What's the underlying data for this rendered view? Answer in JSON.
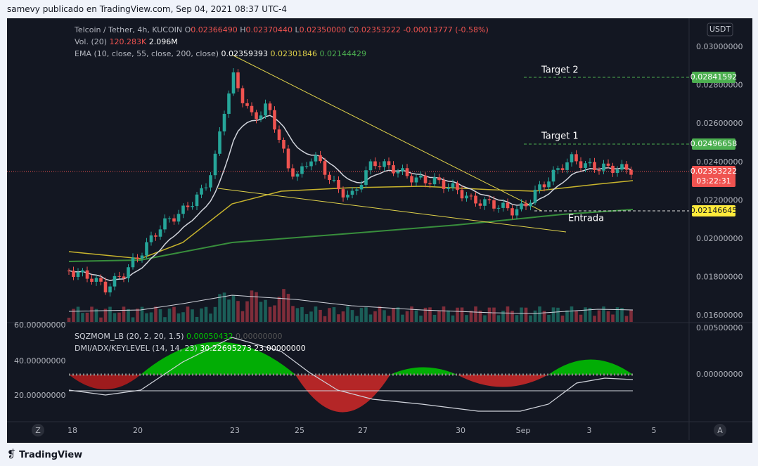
{
  "header": {
    "text": "samevy publicado en TradingView.com, Sep 04, 2021 08:37 UTC-4"
  },
  "legend": {
    "symbol": "Telcoin / Tether, 4h, KUCOIN",
    "open_label": "O",
    "open": "0.02366490",
    "high_label": "H",
    "high": "0.02370440",
    "low_label": "L",
    "low": "0.02350000",
    "close_label": "C",
    "close": "0.02353222",
    "change": "-0.00013777 (-0.58%)",
    "volume_name": "Vol. (20)",
    "volume_ma": "120.283K",
    "volume": "2.096M",
    "ema_name": "EMA (10, close, 55, close, 200, close)",
    "ema_values": [
      "0.02359393",
      "0.02301846",
      "0.02144429"
    ]
  },
  "price_axis": {
    "currency": "USDT",
    "labels": [
      "0.03000000",
      "0.02800000",
      "0.02600000",
      "0.02400000",
      "0.02200000",
      "0.02000000",
      "0.01800000",
      "0.01600000"
    ]
  },
  "price_badges": {
    "target2": "0.02841592",
    "target1": "0.02496658",
    "last": "0.02353222",
    "countdown": "03:22:31",
    "entry": "0.02146645"
  },
  "annotations": {
    "target2": "Target 2",
    "target1": "Target 1",
    "entry": "Entrada"
  },
  "indicator_pane": {
    "sqzmom_name": "SQZMOM_LB (20, 2, 20, 1.5)",
    "sqzmom_value": "0.00050432",
    "sqzmom_value2": "0.00000000",
    "dmi_name": "DMI/ADX/KEYLEVEL (14, 14, 23)",
    "dmi_values": [
      "30.22695273",
      "23.00000000"
    ],
    "left_axis": [
      "60.00000000",
      "40.00000000",
      "20.00000000"
    ],
    "right_axis": [
      "0.00500000",
      "0.00000000"
    ]
  },
  "time_axis": [
    "18",
    "20",
    "23",
    "25",
    "27",
    "30",
    "Sep",
    "3",
    "5"
  ],
  "buttons": {
    "left": "Z",
    "right": "A"
  },
  "footer": {
    "brand": "TradingView"
  }
}
